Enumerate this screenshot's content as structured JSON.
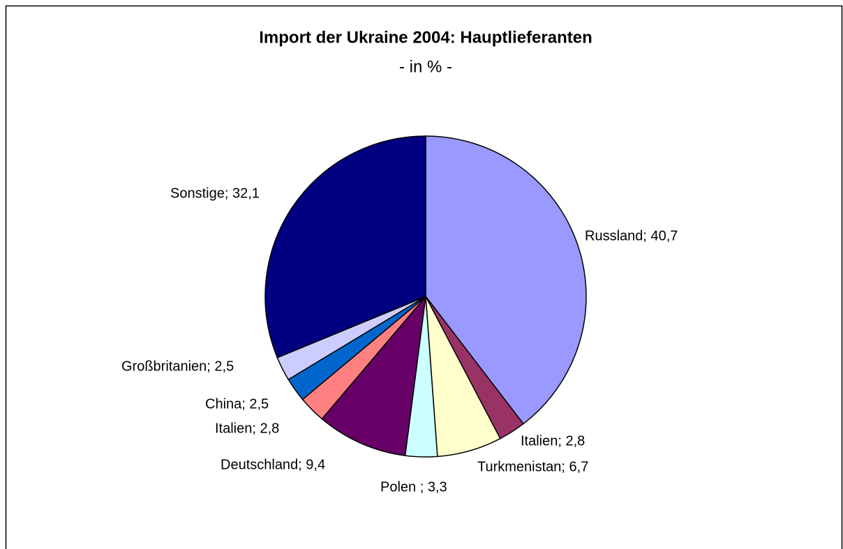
{
  "chart_data": {
    "type": "pie",
    "title": "Import der Ukraine 2004: Hauptlieferanten",
    "subtitle": "- in % -",
    "categories": [
      "Russland; 40,7",
      "Italien; 2,8",
      "Turkmenistan; 6,7",
      "Polen ; 3,3",
      "Deutschland; 9,4",
      "Italien; 2,8",
      "China; 2,5",
      "Großbritanien; 2,5",
      "Sonstige; 32,1"
    ],
    "values": [
      40.7,
      2.8,
      6.7,
      3.3,
      9.4,
      2.8,
      2.5,
      2.5,
      32.1
    ],
    "colors": [
      "#9999ff",
      "#993366",
      "#ffffcc",
      "#ccffff",
      "#660066",
      "#ff8080",
      "#0066cc",
      "#ccccff",
      "#000080"
    ]
  }
}
